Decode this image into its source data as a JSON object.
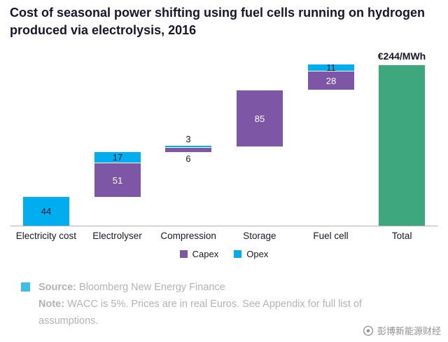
{
  "title": "Cost of seasonal power shifting using fuel cells running on hydrogen produced via electrolysis, 2016",
  "chart_data": {
    "type": "bar",
    "subtype": "waterfall",
    "title": "Cost of seasonal power shifting using fuel cells running on hydrogen produced via electrolysis, 2016",
    "categories": [
      "Electricity cost",
      "Electrolyser",
      "Compression",
      "Storage",
      "Fuel cell",
      "Total"
    ],
    "series": [
      {
        "name": "Capex",
        "color": "#7d57a5",
        "values": [
          0,
          51,
          6,
          85,
          28,
          0
        ]
      },
      {
        "name": "Opex",
        "color": "#00aeef",
        "values": [
          44,
          17,
          3,
          0,
          11,
          0
        ]
      }
    ],
    "total": {
      "category": "Total",
      "label": "€244/MWh",
      "value": 244,
      "color": "#3fa77d"
    },
    "ylim": [
      0,
      260
    ],
    "xlabel": "",
    "ylabel": "",
    "grid": false,
    "legend_position": "bottom-center",
    "value_label_color_on_capex": "#ffffff",
    "value_label_color_on_opex": "#17172b"
  },
  "footer": {
    "bullet_color": "#3fbde9",
    "source_label": "Source:",
    "source_text": "Bloomberg New Energy Finance",
    "note_label": "Note:",
    "note_text": "WACC is 5%. Prices are in real Euros. See Appendix for full list of assumptions."
  },
  "watermark": "彭博新能源财经"
}
